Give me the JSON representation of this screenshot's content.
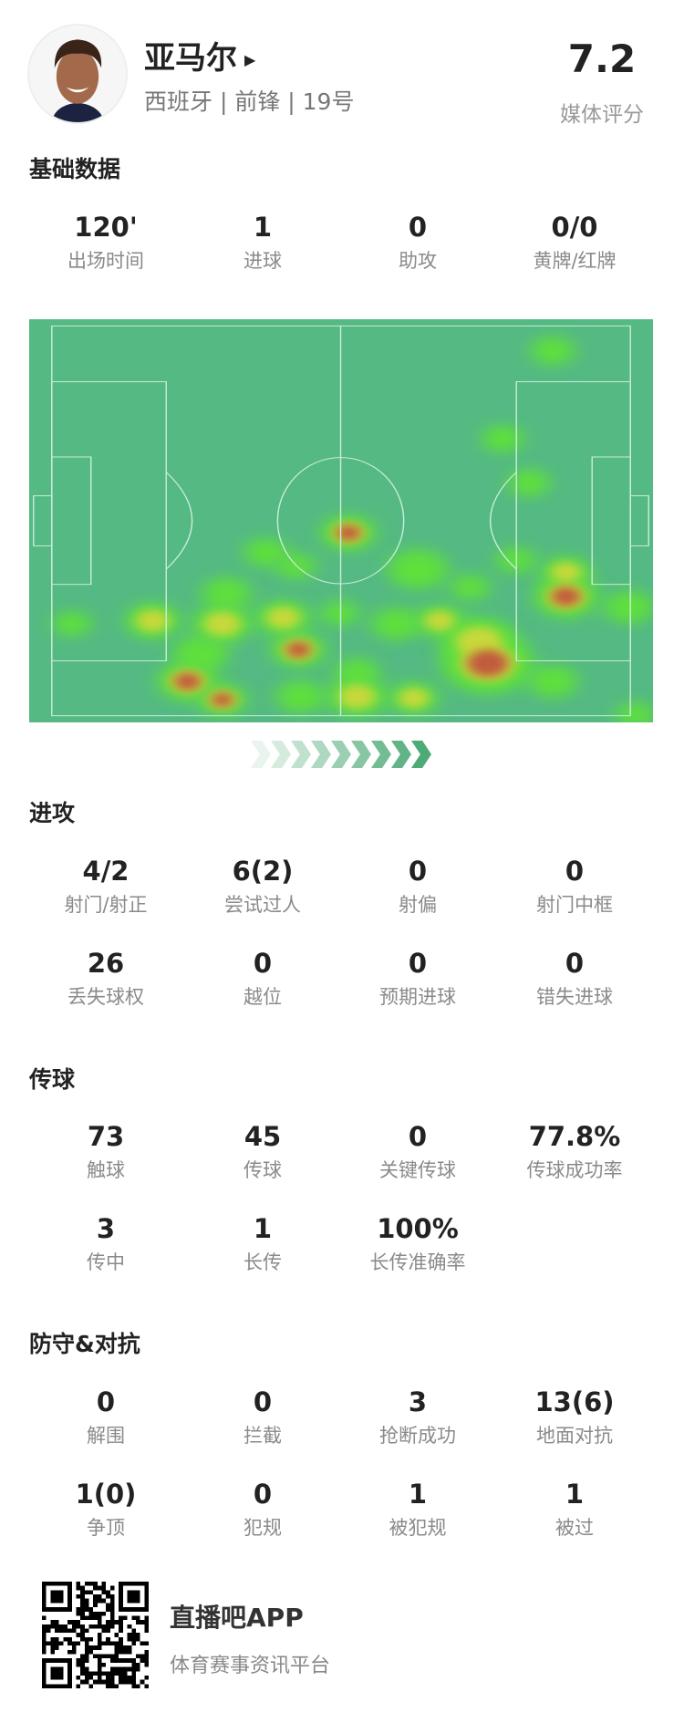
{
  "player": {
    "name": "亚马尔",
    "subtitle": "西班牙 | 前锋 | 19号",
    "rating": "7.2",
    "rating_label": "媒体评分"
  },
  "basic": {
    "title": "基础数据",
    "stats": [
      {
        "value": "120'",
        "label": "出场时间"
      },
      {
        "value": "1",
        "label": "进球"
      },
      {
        "value": "0",
        "label": "助攻"
      },
      {
        "value": "0/0",
        "label": "黄牌/红牌"
      }
    ]
  },
  "heatmap": {
    "pitch_color": "#54b983",
    "direction": "attack-right"
  },
  "attack": {
    "title": "进攻",
    "stats": [
      {
        "value": "4/2",
        "label": "射门/射正"
      },
      {
        "value": "6(2)",
        "label": "尝试过人"
      },
      {
        "value": "0",
        "label": "射偏"
      },
      {
        "value": "0",
        "label": "射门中框"
      },
      {
        "value": "26",
        "label": "丢失球权"
      },
      {
        "value": "0",
        "label": "越位"
      },
      {
        "value": "0",
        "label": "预期进球"
      },
      {
        "value": "0",
        "label": "错失进球"
      }
    ]
  },
  "passing": {
    "title": "传球",
    "stats": [
      {
        "value": "73",
        "label": "触球"
      },
      {
        "value": "45",
        "label": "传球"
      },
      {
        "value": "0",
        "label": "关键传球"
      },
      {
        "value": "77.8%",
        "label": "传球成功率"
      },
      {
        "value": "3",
        "label": "传中"
      },
      {
        "value": "1",
        "label": "长传"
      },
      {
        "value": "100%",
        "label": "长传准确率"
      }
    ]
  },
  "defense": {
    "title": "防守&对抗",
    "stats": [
      {
        "value": "0",
        "label": "解围"
      },
      {
        "value": "0",
        "label": "拦截"
      },
      {
        "value": "3",
        "label": "抢断成功"
      },
      {
        "value": "13(6)",
        "label": "地面对抗"
      },
      {
        "value": "1(0)",
        "label": "争顶"
      },
      {
        "value": "0",
        "label": "犯规"
      },
      {
        "value": "1",
        "label": "被犯规"
      },
      {
        "value": "1",
        "label": "被过"
      }
    ]
  },
  "footer": {
    "app_name": "直播吧APP",
    "slogan": "体育赛事资讯平台"
  }
}
